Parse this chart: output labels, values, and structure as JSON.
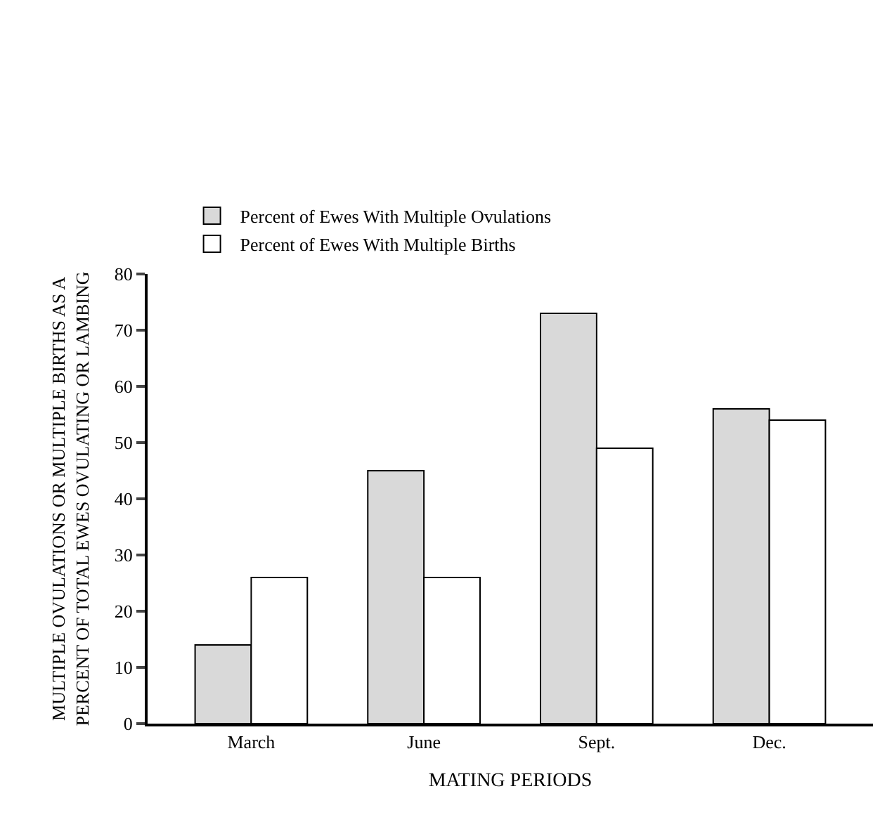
{
  "chart_data": {
    "type": "bar",
    "xlabel": "MATING PERIODS",
    "ylabel": "MULTIPLE OVULATIONS OR MULTIPLE BIRTHS AS A\nPERCENT OF TOTAL EWES OVULATING OR LAMBING",
    "categories": [
      "March",
      "June",
      "Sept.",
      "Dec."
    ],
    "series": [
      {
        "name": "Percent of Ewes With Multiple Ovulations",
        "color": "#d9d9d9",
        "values": [
          14,
          45,
          73,
          56
        ]
      },
      {
        "name": "Percent of Ewes With Multiple Births",
        "color": "#ffffff",
        "values": [
          26,
          26,
          49,
          54
        ]
      }
    ],
    "ylim": [
      0,
      80
    ],
    "yticks": [
      0,
      10,
      20,
      30,
      40,
      50,
      60,
      70,
      80
    ],
    "legend": "top"
  }
}
